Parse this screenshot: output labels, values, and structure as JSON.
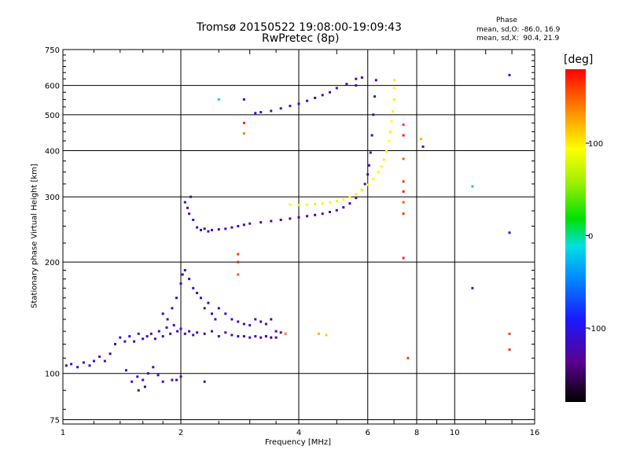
{
  "header": {
    "title_line1": "Tromsø 20150522 19:08:00-19:09:43",
    "title_line2": "RwPretec (8p)",
    "phase_title": "Phase",
    "phase_o": "mean, sd,O: -86.0, 16.9",
    "phase_x": "mean, sd,X:  90.4, 21.9"
  },
  "chart_data": {
    "type": "scatter",
    "xlabel": "Frequency [MHz]",
    "ylabel": "Stationary phase Virtual Height [km]",
    "x_scale": "log",
    "y_scale": "log",
    "xlim": [
      1,
      16
    ],
    "ylim": [
      73,
      750
    ],
    "grid": true,
    "x_ticks": [
      {
        "value": 1,
        "label": "1"
      },
      {
        "value": 2,
        "label": "2"
      },
      {
        "value": 4,
        "label": "4"
      },
      {
        "value": 6,
        "label": "6"
      },
      {
        "value": 8,
        "label": "8"
      },
      {
        "value": 10,
        "label": "10"
      },
      {
        "value": 16,
        "label": "16"
      }
    ],
    "y_ticks": [
      {
        "value": 75,
        "label": "75"
      },
      {
        "value": 100,
        "label": "100"
      },
      {
        "value": 200,
        "label": "200"
      },
      {
        "value": 300,
        "label": "300"
      },
      {
        "value": 400,
        "label": "400"
      },
      {
        "value": 500,
        "label": "500"
      },
      {
        "value": 600,
        "label": "600"
      },
      {
        "value": 750,
        "label": "750"
      }
    ],
    "colorbar": {
      "label": "[deg]",
      "range": [
        -180,
        180
      ],
      "ticks": [
        {
          "value": 100,
          "label": "100"
        },
        {
          "value": 0,
          "label": "0"
        },
        {
          "value": -100,
          "label": "-100"
        }
      ]
    },
    "series": [
      {
        "values": [
          [
            1.02,
            105,
            -110
          ],
          [
            1.05,
            106,
            -112
          ],
          [
            1.09,
            104,
            -108
          ],
          [
            1.13,
            107,
            -115
          ],
          [
            1.17,
            105,
            -110
          ],
          [
            1.2,
            108,
            -118
          ],
          [
            1.24,
            111,
            -112
          ],
          [
            1.28,
            108,
            -110
          ],
          [
            1.32,
            113,
            -120
          ],
          [
            1.36,
            120,
            -118
          ],
          [
            1.4,
            125,
            -115
          ],
          [
            1.44,
            122,
            -120
          ],
          [
            1.48,
            126,
            -118
          ],
          [
            1.52,
            122,
            -115
          ],
          [
            1.56,
            128,
            -125
          ],
          [
            1.6,
            124,
            -120
          ],
          [
            1.64,
            126,
            -118
          ],
          [
            1.68,
            128,
            -122
          ],
          [
            1.72,
            124,
            -120
          ],
          [
            1.76,
            130,
            -118
          ],
          [
            1.8,
            126,
            -125
          ],
          [
            1.84,
            133,
            -120
          ],
          [
            1.88,
            128,
            -118
          ],
          [
            1.92,
            135,
            -122
          ],
          [
            1.96,
            130,
            -120
          ],
          [
            2.0,
            132,
            -118
          ],
          [
            2.05,
            128,
            -120
          ],
          [
            2.1,
            130,
            -122
          ],
          [
            2.15,
            127,
            -120
          ],
          [
            2.2,
            129,
            -118
          ],
          [
            2.3,
            128,
            -125
          ],
          [
            2.4,
            130,
            -120
          ],
          [
            2.5,
            126,
            -118
          ],
          [
            2.6,
            129,
            -122
          ],
          [
            2.7,
            127,
            -120
          ],
          [
            2.8,
            126,
            -110
          ],
          [
            2.9,
            126,
            -115
          ],
          [
            3.0,
            125,
            -112
          ],
          [
            3.1,
            126,
            -118
          ],
          [
            3.2,
            125,
            -140
          ],
          [
            3.3,
            126,
            -145
          ],
          [
            3.4,
            125,
            -150
          ],
          [
            3.5,
            125,
            -140
          ],
          [
            3.6,
            129,
            -125
          ],
          [
            3.7,
            128,
            -120
          ]
        ]
      },
      {
        "values": [
          [
            1.45,
            102,
            -120
          ],
          [
            1.5,
            95,
            -125
          ],
          [
            1.55,
            98,
            -118
          ],
          [
            1.6,
            96,
            -120
          ],
          [
            1.65,
            100,
            -122
          ],
          [
            1.7,
            104,
            -118
          ],
          [
            1.75,
            99,
            -120
          ],
          [
            1.8,
            95,
            -115
          ],
          [
            1.56,
            90,
            -125
          ],
          [
            1.62,
            92,
            -122
          ],
          [
            1.9,
            96,
            -118
          ],
          [
            1.95,
            96,
            -120
          ],
          [
            2.0,
            98,
            -115
          ],
          [
            2.3,
            95,
            -120
          ]
        ]
      },
      {
        "values": [
          [
            1.8,
            145,
            -120
          ],
          [
            1.85,
            140,
            -118
          ],
          [
            1.9,
            150,
            -125
          ],
          [
            1.95,
            160,
            -120
          ],
          [
            2.0,
            175,
            -118
          ],
          [
            2.02,
            185,
            -122
          ],
          [
            2.05,
            190,
            -120
          ],
          [
            2.1,
            180,
            -118
          ],
          [
            2.15,
            170,
            -120
          ],
          [
            2.2,
            165,
            -122
          ],
          [
            2.25,
            160,
            -120
          ],
          [
            2.3,
            150,
            -118
          ],
          [
            2.35,
            155,
            -120
          ],
          [
            2.4,
            145,
            -122
          ],
          [
            2.45,
            140,
            -120
          ],
          [
            2.5,
            150,
            -118
          ],
          [
            2.6,
            145,
            -120
          ],
          [
            2.7,
            140,
            -115
          ],
          [
            2.8,
            138,
            -118
          ],
          [
            2.9,
            136,
            -120
          ],
          [
            3.0,
            135,
            -122
          ],
          [
            3.1,
            140,
            -118
          ],
          [
            3.2,
            138,
            -120
          ],
          [
            3.3,
            136,
            -118
          ],
          [
            3.4,
            140,
            -120
          ],
          [
            3.5,
            130,
            -118
          ]
        ]
      },
      {
        "values": [
          [
            2.05,
            290,
            -115
          ],
          [
            2.08,
            280,
            -118
          ],
          [
            2.1,
            270,
            -120
          ],
          [
            2.12,
            300,
            -112
          ],
          [
            2.15,
            260,
            -118
          ],
          [
            2.2,
            248,
            -120
          ],
          [
            2.25,
            244,
            -118
          ],
          [
            2.3,
            246,
            -120
          ],
          [
            2.35,
            242,
            -118
          ],
          [
            2.4,
            244,
            -120
          ],
          [
            2.5,
            245,
            -118
          ],
          [
            2.6,
            246,
            -120
          ],
          [
            2.7,
            248,
            -118
          ],
          [
            2.8,
            250,
            -120
          ],
          [
            2.9,
            252,
            -118
          ],
          [
            3.0,
            254,
            -125
          ],
          [
            3.2,
            256,
            -125
          ],
          [
            3.4,
            258,
            -128
          ],
          [
            3.6,
            260,
            -125
          ],
          [
            3.8,
            262,
            -128
          ],
          [
            4.0,
            264,
            -125
          ],
          [
            4.2,
            266,
            -128
          ],
          [
            4.4,
            268,
            -125
          ],
          [
            4.6,
            270,
            -128
          ],
          [
            4.8,
            273,
            -125
          ],
          [
            5.0,
            276,
            -122
          ],
          [
            5.2,
            281,
            -125
          ],
          [
            5.4,
            288,
            -122
          ],
          [
            5.6,
            298,
            -120
          ],
          [
            5.8,
            313,
            -118
          ],
          [
            5.9,
            325,
            -120
          ],
          [
            6.0,
            345,
            -118
          ],
          [
            6.05,
            365,
            -120
          ],
          [
            6.1,
            395,
            -118
          ],
          [
            6.15,
            440,
            -122
          ],
          [
            6.2,
            500,
            -120
          ],
          [
            6.25,
            560,
            -125
          ],
          [
            6.3,
            620,
            -130
          ]
        ]
      },
      {
        "values": [
          [
            3.8,
            286,
            90
          ],
          [
            4.0,
            285,
            100
          ],
          [
            4.2,
            286,
            95
          ],
          [
            4.4,
            287,
            100
          ],
          [
            4.6,
            288,
            90
          ],
          [
            4.8,
            290,
            95
          ],
          [
            5.0,
            292,
            100
          ],
          [
            5.2,
            295,
            90
          ],
          [
            5.4,
            299,
            95
          ],
          [
            5.6,
            305,
            100
          ],
          [
            5.8,
            313,
            90
          ],
          [
            6.0,
            323,
            95
          ],
          [
            6.2,
            335,
            100
          ],
          [
            6.4,
            350,
            90
          ],
          [
            6.5,
            362,
            95
          ],
          [
            6.6,
            378,
            100
          ],
          [
            6.7,
            398,
            90
          ],
          [
            6.8,
            425,
            95
          ],
          [
            6.85,
            450,
            100
          ],
          [
            6.9,
            480,
            95
          ],
          [
            6.95,
            510,
            90
          ],
          [
            7.0,
            550,
            100
          ],
          [
            7.0,
            590,
            95
          ],
          [
            7.02,
            620,
            100
          ]
        ]
      },
      {
        "values": [
          [
            3.2,
            508,
            -120
          ],
          [
            3.4,
            512,
            -118
          ],
          [
            3.6,
            520,
            -120
          ],
          [
            3.8,
            528,
            -118
          ],
          [
            4.0,
            535,
            -120
          ],
          [
            4.2,
            545,
            -118
          ],
          [
            4.4,
            555,
            -120
          ],
          [
            4.6,
            565,
            -118
          ],
          [
            4.8,
            575,
            -120
          ],
          [
            5.0,
            590,
            -118
          ],
          [
            5.3,
            605,
            -125
          ],
          [
            5.6,
            625,
            -130
          ],
          [
            5.8,
            630,
            -128
          ]
        ]
      },
      {
        "values": [
          [
            7.4,
            470,
            160
          ],
          [
            7.4,
            440,
            170
          ],
          [
            7.4,
            380,
            150
          ],
          [
            7.4,
            330,
            160
          ],
          [
            7.4,
            310,
            170
          ],
          [
            7.4,
            290,
            150
          ],
          [
            7.4,
            270,
            160
          ],
          [
            7.4,
            205,
            170
          ],
          [
            7.6,
            110,
            160
          ],
          [
            8.2,
            430,
            120
          ],
          [
            8.3,
            410,
            -100
          ],
          [
            2.8,
            200,
            170
          ],
          [
            2.8,
            210,
            160
          ],
          [
            2.8,
            185,
            150
          ],
          [
            11.1,
            320,
            -20
          ],
          [
            11.1,
            170,
            -110
          ],
          [
            13.8,
            640,
            -100
          ],
          [
            13.8,
            240,
            -110
          ],
          [
            13.8,
            128,
            160
          ],
          [
            13.8,
            116,
            165
          ],
          [
            4.5,
            128,
            120
          ],
          [
            4.7,
            127,
            110
          ],
          [
            3.7,
            128,
            130
          ],
          [
            2.9,
            475,
            170
          ],
          [
            2.9,
            445,
            140
          ],
          [
            2.5,
            550,
            -20
          ],
          [
            2.9,
            550,
            -110
          ],
          [
            3.1,
            505,
            -100
          ],
          [
            5.6,
            600,
            -110
          ]
        ]
      }
    ]
  }
}
